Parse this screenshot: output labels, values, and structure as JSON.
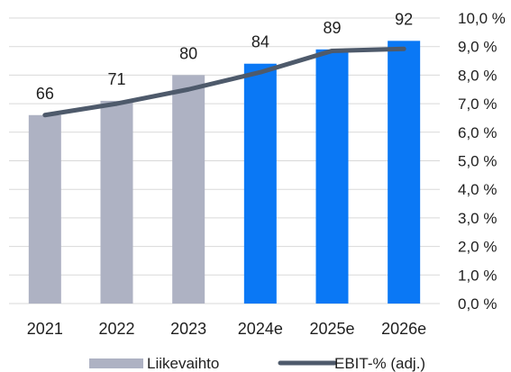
{
  "chart_data": {
    "type": "bar",
    "categories": [
      "2021",
      "2022",
      "2023",
      "2024e",
      "2025e",
      "2026e"
    ],
    "series": [
      {
        "name": "Liikevaihto",
        "type": "bar",
        "values": [
          66,
          71,
          80,
          84,
          89,
          92
        ],
        "data_labels": [
          "66",
          "71",
          "80",
          "84",
          "89",
          "92"
        ],
        "colors": [
          "#aeb2c3",
          "#aeb2c3",
          "#aeb2c3",
          "#0a78f5",
          "#0a78f5",
          "#0a78f5"
        ]
      },
      {
        "name": "EBIT-% (adj.)",
        "type": "line",
        "axis": "right",
        "values": [
          6.6,
          7.0,
          7.5,
          8.1,
          8.85,
          8.92
        ],
        "color": "#4e5a6b"
      }
    ],
    "bar_axis_max": 100,
    "right_axis": {
      "ylim": [
        0,
        10
      ],
      "ticks": [
        "0,0 %",
        "1,0 %",
        "2,0 %",
        "3,0 %",
        "4,0 %",
        "5,0 %",
        "6,0 %",
        "7,0 %",
        "8,0 %",
        "9,0 %",
        "10,0 %"
      ]
    },
    "grid": true,
    "legend_position": "bottom",
    "legend": [
      {
        "label": "Liikevaihto",
        "kind": "bar",
        "color": "#aeb2c3"
      },
      {
        "label": "EBIT-% (adj.)",
        "kind": "line",
        "color": "#4e5a6b"
      }
    ]
  }
}
